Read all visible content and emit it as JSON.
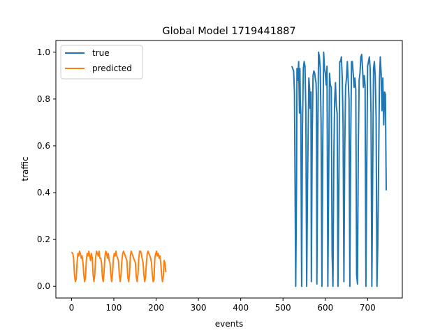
{
  "chart_data": {
    "type": "line",
    "title": "Global Model 1719441887",
    "xlabel": "events",
    "ylabel": "traffic",
    "xlim": [
      -37,
      782
    ],
    "ylim": [
      -0.05,
      1.05
    ],
    "xticks": [
      0,
      100,
      200,
      300,
      400,
      500,
      600,
      700
    ],
    "yticks": [
      0.0,
      0.2,
      0.4,
      0.6,
      0.8,
      1.0
    ],
    "xtick_labels": [
      "0",
      "100",
      "200",
      "300",
      "400",
      "500",
      "600",
      "700"
    ],
    "ytick_labels": [
      "0.0",
      "0.2",
      "0.4",
      "0.6",
      "0.8",
      "1.0"
    ],
    "legend_position": "top-left",
    "series": [
      {
        "name": "true",
        "color": "#1f77b4",
        "x": [
          521,
          525,
          527,
          530,
          532,
          533,
          534,
          535,
          537,
          539,
          540,
          541,
          542,
          544,
          546,
          548,
          550,
          552,
          554,
          556,
          558,
          561,
          563,
          564,
          566,
          567,
          569,
          571,
          573,
          575,
          577,
          578,
          579,
          580,
          582,
          584,
          586,
          588,
          590,
          592,
          594,
          596,
          598,
          600,
          602,
          604,
          606,
          608,
          610,
          612,
          614,
          616,
          618,
          620,
          622,
          624,
          626,
          628,
          630,
          632,
          634,
          636,
          638,
          640,
          642,
          644,
          646,
          648,
          650,
          652,
          654,
          656,
          658,
          660,
          662,
          664,
          666,
          668,
          670,
          672,
          674,
          676,
          678,
          680,
          682,
          684,
          686,
          688,
          690,
          692,
          694,
          696,
          698,
          700,
          702,
          704,
          706,
          708,
          710,
          712,
          714,
          716,
          718,
          720,
          722,
          724,
          726,
          728,
          730,
          732,
          734,
          736,
          738,
          740,
          742,
          744
        ],
        "y": [
          0.94,
          0.92,
          0.83,
          0.0,
          0.45,
          0.93,
          0.93,
          0.88,
          0.96,
          0.74,
          0.93,
          0.79,
          0.74,
          0.0,
          0.68,
          0.93,
          0.96,
          0.94,
          0.75,
          0.0,
          0.43,
          0.89,
          0.84,
          0.76,
          0.83,
          0.02,
          0.64,
          0.9,
          0.92,
          0.91,
          0.88,
          0.87,
          0.81,
          0.01,
          0.6,
          1.0,
          0.98,
          0.93,
          0.7,
          0.0,
          0.61,
          1.0,
          0.93,
          0.91,
          0.86,
          0.94,
          0.0,
          0.47,
          0.91,
          0.86,
          0.85,
          0.14,
          0.0,
          0.53,
          0.79,
          0.87,
          0.77,
          0.74,
          0.0,
          0.42,
          0.96,
          0.96,
          0.98,
          0.89,
          0.69,
          0.02,
          0.58,
          0.85,
          0.89,
          0.96,
          0.88,
          0.8,
          0.0,
          0.61,
          0.96,
          0.96,
          0.91,
          0.85,
          0.89,
          0.84,
          0.05,
          0.01,
          0.58,
          0.88,
          0.91,
          0.98,
          0.99,
          0.93,
          0.85,
          0.9,
          0.86,
          0.0,
          0.5,
          0.94,
          0.96,
          0.98,
          0.93,
          0.74,
          0.0,
          0.48,
          0.93,
          0.96,
          0.9,
          0.72,
          0.0,
          0.18,
          0.52,
          0.88,
          0.98,
          0.91,
          0.75,
          0.89,
          0.69,
          0.83,
          0.82,
          0.41
        ]
      },
      {
        "name": "predicted",
        "color": "#ff7f0e",
        "x": [
          0,
          3,
          5,
          7,
          9,
          11,
          13,
          15,
          17,
          19,
          21,
          23,
          25,
          27,
          29,
          31,
          33,
          35,
          37,
          39,
          41,
          43,
          45,
          47,
          49,
          51,
          53,
          55,
          57,
          59,
          61,
          63,
          65,
          67,
          69,
          71,
          73,
          75,
          77,
          79,
          81,
          83,
          85,
          87,
          89,
          91,
          93,
          95,
          97,
          99,
          101,
          103,
          105,
          107,
          109,
          111,
          113,
          115,
          117,
          119,
          121,
          123,
          125,
          127,
          129,
          131,
          133,
          135,
          137,
          139,
          141,
          143,
          145,
          147,
          149,
          151,
          153,
          155,
          157,
          159,
          161,
          163,
          165,
          167,
          169,
          171,
          173,
          175,
          177,
          179,
          181,
          183,
          185,
          187,
          189,
          191,
          193,
          195,
          197,
          199,
          201,
          203,
          205,
          207,
          209,
          211,
          213,
          215,
          217,
          219,
          221,
          223
        ],
        "y": [
          0.146,
          0.14,
          0.12,
          0.05,
          0.02,
          0.03,
          0.1,
          0.14,
          0.13,
          0.15,
          0.14,
          0.12,
          0.13,
          0.1,
          0.05,
          0.02,
          0.04,
          0.11,
          0.14,
          0.13,
          0.15,
          0.13,
          0.11,
          0.14,
          0.12,
          0.05,
          0.02,
          0.05,
          0.12,
          0.15,
          0.14,
          0.13,
          0.15,
          0.12,
          0.12,
          0.1,
          0.04,
          0.02,
          0.06,
          0.13,
          0.15,
          0.14,
          0.12,
          0.14,
          0.11,
          0.1,
          0.05,
          0.02,
          0.06,
          0.12,
          0.14,
          0.13,
          0.15,
          0.13,
          0.12,
          0.11,
          0.05,
          0.02,
          0.05,
          0.11,
          0.14,
          0.15,
          0.14,
          0.13,
          0.12,
          0.11,
          0.04,
          0.02,
          0.05,
          0.13,
          0.15,
          0.14,
          0.13,
          0.12,
          0.11,
          0.1,
          0.04,
          0.02,
          0.05,
          0.12,
          0.15,
          0.15,
          0.14,
          0.12,
          0.1,
          0.05,
          0.02,
          0.04,
          0.1,
          0.14,
          0.15,
          0.14,
          0.13,
          0.12,
          0.1,
          0.05,
          0.02,
          0.03,
          0.12,
          0.14,
          0.15,
          0.13,
          0.14,
          0.12,
          0.13,
          0.1,
          0.05,
          0.02,
          0.04,
          0.11,
          0.1,
          0.06
        ]
      }
    ]
  }
}
